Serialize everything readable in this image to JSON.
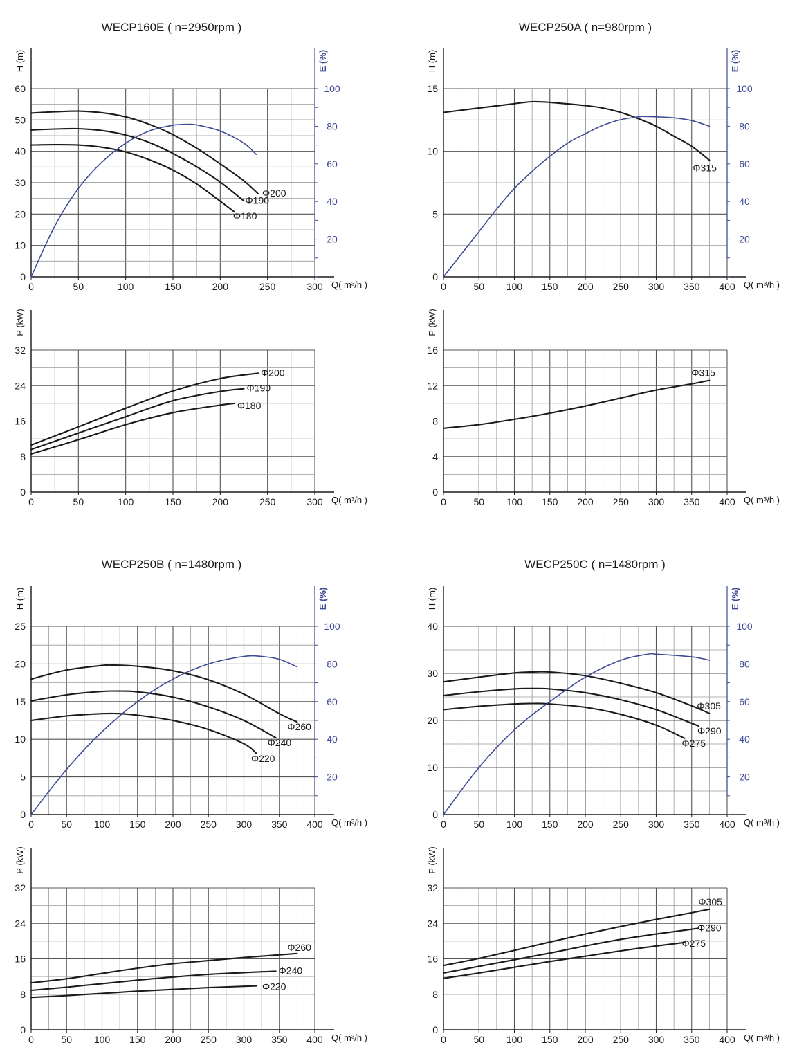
{
  "colors": {
    "head_power": "#1a1a1a",
    "efficiency": "#3d4a94",
    "grid": "#9a9a9a",
    "grid_major": "#555555"
  },
  "chart_data": [
    {
      "type": "line",
      "title": "WECP160E ( n=2950rpm )",
      "xlabel": "Q( m³/h )",
      "ylabel": "H (m)",
      "y2label": "E (%)",
      "xlim": [
        0,
        300
      ],
      "ylim": [
        0,
        60
      ],
      "y2lim": [
        0,
        100
      ],
      "xticks": [
        "0",
        "50",
        "100",
        "150",
        "200",
        "250",
        "300"
      ],
      "yticks": [
        "0",
        "10",
        "20",
        "30",
        "40",
        "50",
        "60"
      ],
      "y2ticks": [
        "20",
        "40",
        "60",
        "80",
        "100"
      ],
      "grid": true,
      "series": [
        {
          "name": "Φ200",
          "axis": "H",
          "x": [
            0,
            25,
            50,
            75,
            100,
            125,
            150,
            175,
            200,
            225,
            240
          ],
          "y": [
            52.2,
            52.6,
            52.8,
            52.3,
            51,
            48.6,
            45.3,
            41,
            36,
            30.6,
            26.5
          ]
        },
        {
          "name": "Φ190",
          "axis": "H",
          "x": [
            0,
            25,
            50,
            75,
            100,
            125,
            150,
            175,
            200,
            225
          ],
          "y": [
            46.8,
            47.1,
            47.2,
            46.6,
            45.2,
            42.8,
            39.3,
            35.1,
            30.2,
            24.2
          ]
        },
        {
          "name": "Φ180",
          "axis": "H",
          "x": [
            0,
            25,
            50,
            75,
            100,
            125,
            150,
            175,
            200,
            215
          ],
          "y": [
            42,
            42.1,
            42,
            41.3,
            39.8,
            37.3,
            34,
            29.6,
            24.1,
            20.7
          ]
        },
        {
          "name": "E",
          "axis": "E",
          "x": [
            0,
            25,
            50,
            75,
            100,
            125,
            150,
            165,
            175,
            200,
            225,
            238
          ],
          "y": [
            0,
            27,
            47,
            61,
            71,
            77.5,
            80.5,
            81,
            80.7,
            77.5,
            71,
            65
          ]
        }
      ]
    },
    {
      "type": "line",
      "xlabel": "Q( m³/h )",
      "ylabel": "P (kW)",
      "xlim": [
        0,
        300
      ],
      "ylim": [
        0,
        32
      ],
      "xticks": [
        "0",
        "50",
        "100",
        "150",
        "200",
        "250",
        "300"
      ],
      "yticks": [
        "0",
        "8",
        "16",
        "24",
        "32"
      ],
      "grid": true,
      "series": [
        {
          "name": "Φ200",
          "x": [
            0,
            50,
            100,
            150,
            200,
            240
          ],
          "y": [
            10.6,
            14.7,
            18.9,
            22.8,
            25.6,
            26.8
          ]
        },
        {
          "name": "Φ190",
          "x": [
            0,
            50,
            100,
            150,
            200,
            225
          ],
          "y": [
            9.6,
            13.3,
            17,
            20.6,
            22.7,
            23.3
          ]
        },
        {
          "name": "Φ180",
          "x": [
            0,
            50,
            100,
            150,
            200,
            215
          ],
          "y": [
            8.6,
            11.8,
            15.2,
            17.9,
            19.6,
            20
          ]
        }
      ]
    },
    {
      "type": "line",
      "title": "WECP250A ( n=980rpm )",
      "xlabel": "Q( m³/h )",
      "ylabel": "H (m)",
      "y2label": "E (%)",
      "xlim": [
        0,
        400
      ],
      "ylim": [
        0,
        15
      ],
      "y2lim": [
        0,
        100
      ],
      "xticks": [
        "0",
        "50",
        "100",
        "150",
        "200",
        "250",
        "300",
        "350",
        "400"
      ],
      "yticks": [
        "0",
        "5",
        "10",
        "15"
      ],
      "y2ticks": [
        "20",
        "40",
        "60",
        "80",
        "100"
      ],
      "grid": true,
      "series": [
        {
          "name": "Φ315",
          "axis": "H",
          "x": [
            0,
            50,
            100,
            125,
            150,
            200,
            225,
            250,
            275,
            300,
            325,
            350,
            375
          ],
          "y": [
            13.1,
            13.45,
            13.8,
            13.95,
            13.9,
            13.65,
            13.45,
            13.1,
            12.6,
            12,
            11.2,
            10.4,
            9.3
          ]
        },
        {
          "name": "E",
          "axis": "E",
          "x": [
            0,
            25,
            50,
            75,
            100,
            125,
            150,
            175,
            200,
            225,
            250,
            275,
            285,
            300,
            325,
            350,
            375
          ],
          "y": [
            0,
            12,
            24,
            36,
            47,
            56,
            64,
            71,
            76,
            80.5,
            83.5,
            85,
            85.2,
            85,
            84.5,
            83,
            80
          ]
        }
      ]
    },
    {
      "type": "line",
      "xlabel": "Q( m³/h )",
      "ylabel": "P (kW)",
      "xlim": [
        0,
        400
      ],
      "ylim": [
        0,
        16
      ],
      "xticks": [
        "0",
        "50",
        "100",
        "150",
        "200",
        "250",
        "300",
        "350",
        "400"
      ],
      "yticks": [
        "0",
        "4",
        "8",
        "12",
        "16"
      ],
      "grid": true,
      "series": [
        {
          "name": "Φ315",
          "x": [
            0,
            50,
            100,
            150,
            200,
            250,
            300,
            350,
            375
          ],
          "y": [
            7.2,
            7.6,
            8.2,
            8.9,
            9.7,
            10.6,
            11.5,
            12.2,
            12.6
          ]
        }
      ]
    },
    {
      "type": "line",
      "title": "WECP250B ( n=1480rpm )",
      "xlabel": "Q( m³/h )",
      "ylabel": "H (m)",
      "y2label": "E (%)",
      "xlim": [
        0,
        400
      ],
      "ylim": [
        0,
        25
      ],
      "y2lim": [
        0,
        100
      ],
      "xticks": [
        "0",
        "50",
        "100",
        "150",
        "200",
        "250",
        "300",
        "350",
        "400"
      ],
      "yticks": [
        "0",
        "5",
        "10",
        "15",
        "20",
        "25"
      ],
      "y2ticks": [
        "20",
        "40",
        "60",
        "80",
        "100"
      ],
      "grid": true,
      "series": [
        {
          "name": "Φ260",
          "axis": "H",
          "x": [
            0,
            50,
            100,
            115,
            150,
            200,
            250,
            300,
            350,
            375
          ],
          "y": [
            18,
            19.2,
            19.8,
            19.85,
            19.7,
            19.1,
            17.9,
            16,
            13.4,
            12.3
          ]
        },
        {
          "name": "Φ240",
          "axis": "H",
          "x": [
            0,
            50,
            100,
            125,
            150,
            200,
            250,
            300,
            345
          ],
          "y": [
            15.1,
            15.9,
            16.35,
            16.4,
            16.3,
            15.6,
            14.3,
            12.5,
            10.2
          ]
        },
        {
          "name": "Φ220",
          "axis": "H",
          "x": [
            0,
            50,
            100,
            125,
            150,
            200,
            250,
            300,
            318
          ],
          "y": [
            12.5,
            13.1,
            13.4,
            13.4,
            13.2,
            12.5,
            11.3,
            9.4,
            8.1
          ]
        },
        {
          "name": "E",
          "axis": "E",
          "x": [
            0,
            50,
            100,
            150,
            200,
            250,
            300,
            325,
            350,
            375
          ],
          "y": [
            0,
            24,
            44,
            60,
            72,
            80,
            84,
            84,
            82.5,
            78.5
          ]
        }
      ]
    },
    {
      "type": "line",
      "xlabel": "Q( m³/h )",
      "ylabel": "P (kW)",
      "xlim": [
        0,
        400
      ],
      "ylim": [
        0,
        32
      ],
      "xticks": [
        "0",
        "50",
        "100",
        "150",
        "200",
        "250",
        "300",
        "350",
        "400"
      ],
      "yticks": [
        "0",
        "8",
        "16",
        "24",
        "32"
      ],
      "grid": true,
      "series": [
        {
          "name": "Φ260",
          "x": [
            0,
            50,
            100,
            150,
            200,
            250,
            300,
            350,
            375
          ],
          "y": [
            10.6,
            11.5,
            12.7,
            13.9,
            14.9,
            15.6,
            16.3,
            16.9,
            17.2
          ]
        },
        {
          "name": "Φ240",
          "x": [
            0,
            50,
            100,
            150,
            200,
            250,
            300,
            345
          ],
          "y": [
            8.9,
            9.6,
            10.4,
            11.2,
            11.9,
            12.5,
            12.9,
            13.2
          ]
        },
        {
          "name": "Φ220",
          "x": [
            0,
            50,
            100,
            150,
            200,
            250,
            300,
            318
          ],
          "y": [
            7.3,
            7.7,
            8.2,
            8.7,
            9.1,
            9.5,
            9.8,
            9.9
          ]
        }
      ]
    },
    {
      "type": "line",
      "title": "WECP250C ( n=1480rpm )",
      "xlabel": "Q( m³/h )",
      "ylabel": "H (m)",
      "y2label": "E (%)",
      "xlim": [
        0,
        400
      ],
      "ylim": [
        0,
        40
      ],
      "y2lim": [
        0,
        100
      ],
      "xticks": [
        "0",
        "50",
        "100",
        "150",
        "200",
        "250",
        "300",
        "350",
        "400"
      ],
      "yticks": [
        "0",
        "10",
        "20",
        "30",
        "40"
      ],
      "y2ticks": [
        "20",
        "40",
        "60",
        "80",
        "100"
      ],
      "grid": true,
      "series": [
        {
          "name": "Φ305",
          "axis": "H",
          "x": [
            0,
            50,
            100,
            125,
            150,
            200,
            250,
            300,
            350,
            375
          ],
          "y": [
            28.2,
            29.2,
            30.1,
            30.3,
            30.3,
            29.5,
            27.9,
            25.9,
            23.1,
            21.5
          ]
        },
        {
          "name": "Φ290",
          "axis": "H",
          "x": [
            0,
            50,
            100,
            125,
            150,
            200,
            250,
            300,
            350,
            360
          ],
          "y": [
            25.3,
            26.1,
            26.7,
            26.8,
            26.7,
            25.9,
            24.4,
            22.3,
            19.4,
            18.8
          ]
        },
        {
          "name": "Φ275",
          "axis": "H",
          "x": [
            0,
            50,
            100,
            125,
            150,
            200,
            250,
            300,
            340
          ],
          "y": [
            22.3,
            23,
            23.5,
            23.6,
            23.5,
            22.8,
            21.3,
            19,
            16.2
          ]
        },
        {
          "name": "E",
          "axis": "E",
          "x": [
            0,
            50,
            100,
            150,
            200,
            250,
            290,
            300,
            350,
            375
          ],
          "y": [
            0,
            25,
            45,
            60,
            73,
            82,
            85.3,
            85.2,
            83.8,
            82
          ]
        }
      ]
    },
    {
      "type": "line",
      "xlabel": "Q( m³/h )",
      "ylabel": "P (kW)",
      "xlim": [
        0,
        400
      ],
      "ylim": [
        0,
        32
      ],
      "xticks": [
        "0",
        "50",
        "100",
        "150",
        "200",
        "250",
        "300",
        "350",
        "400"
      ],
      "yticks": [
        "0",
        "8",
        "16",
        "24",
        "32"
      ],
      "grid": true,
      "series": [
        {
          "name": "Φ305",
          "x": [
            0,
            50,
            100,
            150,
            200,
            250,
            300,
            350,
            375
          ],
          "y": [
            14.5,
            16.1,
            17.9,
            19.8,
            21.6,
            23.3,
            24.9,
            26.4,
            27.2
          ]
        },
        {
          "name": "Φ290",
          "x": [
            0,
            50,
            100,
            150,
            200,
            250,
            300,
            360
          ],
          "y": [
            12.8,
            14.3,
            15.8,
            17.3,
            18.9,
            20.4,
            21.6,
            22.9
          ]
        },
        {
          "name": "Φ275",
          "x": [
            0,
            50,
            100,
            150,
            200,
            250,
            300,
            340
          ],
          "y": [
            11.6,
            12.8,
            14.1,
            15.4,
            16.6,
            17.8,
            18.9,
            19.7
          ]
        }
      ]
    }
  ]
}
